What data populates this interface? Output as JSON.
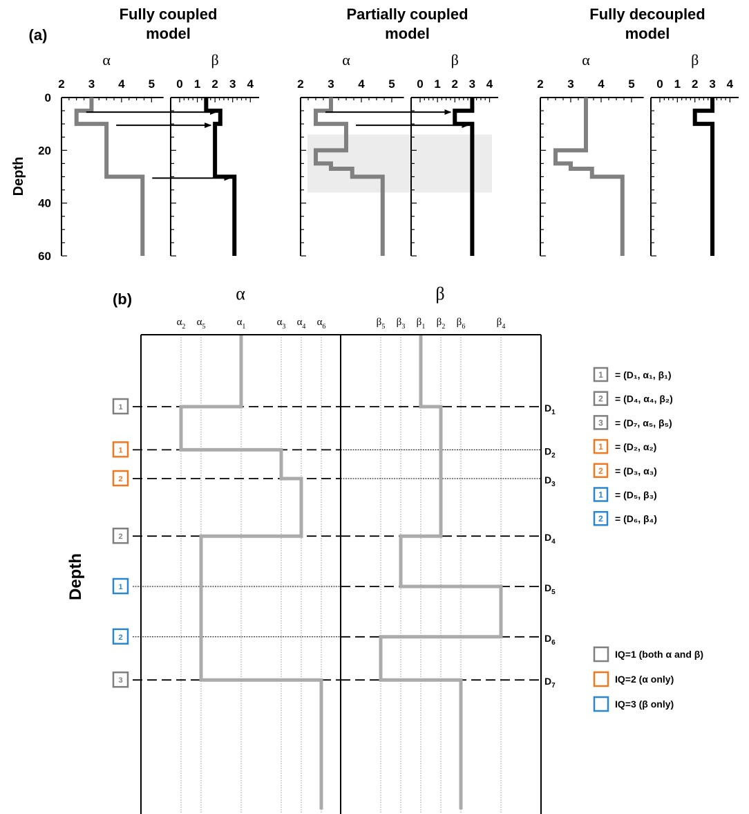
{
  "panel_a": {
    "label": "(a)",
    "depth_label": "Depth",
    "depth_ticks": [
      "0",
      "20",
      "40",
      "60"
    ],
    "alpha_symbol": "α",
    "beta_symbol": "β",
    "alpha_ticks": [
      "2",
      "3",
      "4",
      "5"
    ],
    "beta_ticks": [
      "0",
      "1",
      "2",
      "3",
      "4"
    ],
    "models": [
      {
        "title_line1": "Fully coupled",
        "title_line2": "model",
        "alpha_profile": [
          [
            3,
            0
          ],
          [
            3,
            5
          ],
          [
            2.5,
            5
          ],
          [
            2.5,
            10
          ],
          [
            3.5,
            10
          ],
          [
            3.5,
            30
          ],
          [
            4.7,
            30
          ],
          [
            4.7,
            60
          ]
        ],
        "beta_profile": [
          [
            1.5,
            0
          ],
          [
            1.5,
            5
          ],
          [
            2.3,
            5
          ],
          [
            2.3,
            10
          ],
          [
            2,
            10
          ],
          [
            2,
            30
          ],
          [
            3.1,
            30
          ],
          [
            3.1,
            60
          ]
        ],
        "coupling_arrows_depths": [
          5,
          10,
          30
        ],
        "shaded_band": null
      },
      {
        "title_line1": "Partially coupled",
        "title_line2": "model",
        "alpha_profile": [
          [
            3,
            0
          ],
          [
            3,
            5
          ],
          [
            2.5,
            5
          ],
          [
            2.5,
            10
          ],
          [
            3.5,
            10
          ],
          [
            3.5,
            20
          ],
          [
            2.5,
            20
          ],
          [
            2.5,
            25
          ],
          [
            3,
            25
          ],
          [
            3,
            27
          ],
          [
            3.7,
            27
          ],
          [
            3.7,
            30
          ],
          [
            4.7,
            30
          ],
          [
            4.7,
            60
          ]
        ],
        "beta_profile": [
          [
            3,
            0
          ],
          [
            3,
            5
          ],
          [
            2,
            5
          ],
          [
            2,
            10
          ],
          [
            3,
            10
          ],
          [
            3,
            60
          ]
        ],
        "coupling_arrows_depths": [
          5,
          10
        ],
        "shaded_band": [
          14,
          36
        ]
      },
      {
        "title_line1": "Fully decoupled",
        "title_line2": "model",
        "alpha_profile": [
          [
            3.5,
            0
          ],
          [
            3.5,
            20
          ],
          [
            2.5,
            20
          ],
          [
            2.5,
            25
          ],
          [
            3,
            25
          ],
          [
            3,
            27
          ],
          [
            3.7,
            27
          ],
          [
            3.7,
            30
          ],
          [
            4.7,
            30
          ],
          [
            4.7,
            60
          ]
        ],
        "beta_profile": [
          [
            3,
            0
          ],
          [
            3,
            5
          ],
          [
            2,
            5
          ],
          [
            2,
            10
          ],
          [
            3,
            10
          ],
          [
            3,
            60
          ]
        ],
        "coupling_arrows_depths": [],
        "shaded_band": null
      }
    ]
  },
  "panel_b": {
    "label": "(b)",
    "depth_label": "Depth",
    "alpha_header": "α",
    "beta_header": "β",
    "alpha_params": [
      {
        "sym": "α",
        "sub": "2",
        "value": 2.0
      },
      {
        "sym": "α",
        "sub": "5",
        "value": 2.5
      },
      {
        "sym": "α",
        "sub": "1",
        "value": 3.5
      },
      {
        "sym": "α",
        "sub": "3",
        "value": 4.5
      },
      {
        "sym": "α",
        "sub": "4",
        "value": 5.0
      },
      {
        "sym": "α",
        "sub": "6",
        "value": 5.5
      }
    ],
    "beta_params": [
      {
        "sym": "β",
        "sub": "5",
        "value": 1.0
      },
      {
        "sym": "β",
        "sub": "3",
        "value": 1.5
      },
      {
        "sym": "β",
        "sub": "1",
        "value": 2.0
      },
      {
        "sym": "β",
        "sub": "2",
        "value": 2.5
      },
      {
        "sym": "β",
        "sub": "6",
        "value": 3.0
      },
      {
        "sym": "β",
        "sub": "4",
        "value": 4.0
      }
    ],
    "interfaces": [
      {
        "name": "D",
        "sub": "1",
        "iq": 1,
        "num": "1",
        "depth": 1.0,
        "alpha_dashed": true,
        "beta_dashed": true
      },
      {
        "name": "D",
        "sub": "2",
        "iq": 2,
        "num": "1",
        "depth": 1.6,
        "alpha_dashed": true,
        "beta_dashed": false
      },
      {
        "name": "D",
        "sub": "3",
        "iq": 2,
        "num": "2",
        "depth": 2.0,
        "alpha_dashed": true,
        "beta_dashed": false
      },
      {
        "name": "D",
        "sub": "4",
        "iq": 1,
        "num": "2",
        "depth": 2.8,
        "alpha_dashed": true,
        "beta_dashed": true
      },
      {
        "name": "D",
        "sub": "5",
        "iq": 3,
        "num": "1",
        "depth": 3.5,
        "alpha_dashed": false,
        "beta_dashed": true
      },
      {
        "name": "D",
        "sub": "6",
        "iq": 3,
        "num": "2",
        "depth": 4.2,
        "alpha_dashed": false,
        "beta_dashed": true
      },
      {
        "name": "D",
        "sub": "7",
        "iq": 1,
        "num": "3",
        "depth": 4.8,
        "alpha_dashed": true,
        "beta_dashed": true
      }
    ],
    "alpha_profile": [
      [
        3.5,
        0
      ],
      [
        3.5,
        1.0
      ],
      [
        2.0,
        1.0
      ],
      [
        2.0,
        1.6
      ],
      [
        4.5,
        1.6
      ],
      [
        4.5,
        2.0
      ],
      [
        5.0,
        2.0
      ],
      [
        5.0,
        2.8
      ],
      [
        2.5,
        2.8
      ],
      [
        2.5,
        4.8
      ],
      [
        5.5,
        4.8
      ],
      [
        5.5,
        6.6
      ]
    ],
    "beta_profile": [
      [
        2.0,
        0
      ],
      [
        2.0,
        1.0
      ],
      [
        2.5,
        1.0
      ],
      [
        2.5,
        2.8
      ],
      [
        1.5,
        2.8
      ],
      [
        1.5,
        3.5
      ],
      [
        4.0,
        3.5
      ],
      [
        4.0,
        4.2
      ],
      [
        1.0,
        4.2
      ],
      [
        1.0,
        4.8
      ],
      [
        3.0,
        4.8
      ],
      [
        3.0,
        6.6
      ]
    ],
    "legend_entries": [
      {
        "iq": 1,
        "num": "1",
        "text": "= (D₁, α₁, β₁)"
      },
      {
        "iq": 1,
        "num": "2",
        "text": "= (D₄, α₄, β₂)"
      },
      {
        "iq": 1,
        "num": "3",
        "text": "= (D₇, α₅, β₅)"
      },
      {
        "iq": 2,
        "num": "1",
        "text": "= (D₂, α₂)"
      },
      {
        "iq": 2,
        "num": "2",
        "text": "= (D₃, α₃)"
      },
      {
        "iq": 3,
        "num": "1",
        "text": "= (D₅, β₃)"
      },
      {
        "iq": 3,
        "num": "2",
        "text": "= (D₆, β₄)"
      }
    ],
    "iq_legend": [
      {
        "iq": 1,
        "text": "IQ=1 (both α and β)"
      },
      {
        "iq": 2,
        "text": "IQ=2 (α only)"
      },
      {
        "iq": 3,
        "text": "IQ=3 (β only)"
      }
    ]
  },
  "colors": {
    "iq1": "#7f7f7f",
    "iq2": "#f07820",
    "iq3": "#2a86d0",
    "alpha_line": "#808080",
    "beta_line": "#000000",
    "profile_b": "#ababab",
    "shade": "#ececec"
  }
}
